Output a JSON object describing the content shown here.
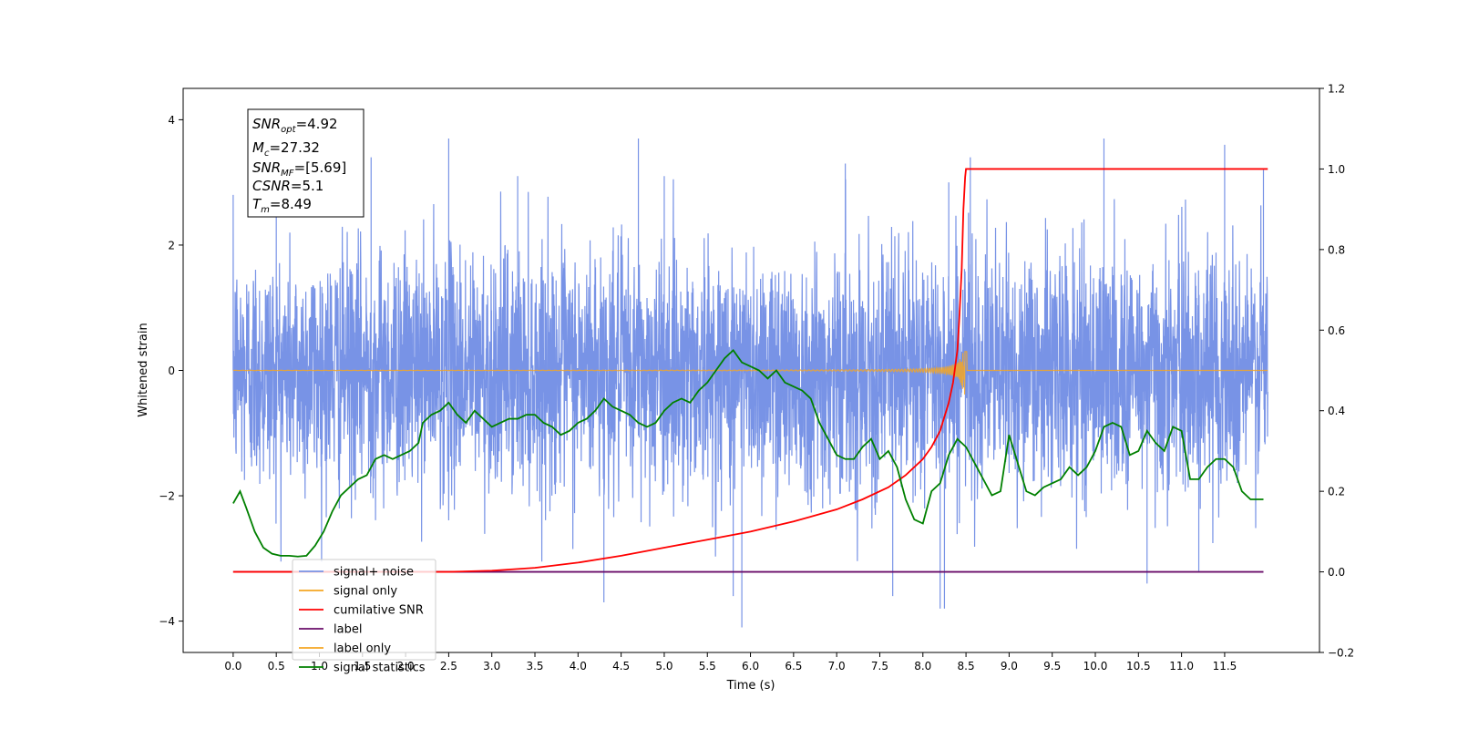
{
  "chart_data": {
    "type": "line",
    "xlabel": "Time (s)",
    "ylabel": "Whitened strain",
    "xlim": [
      -0.58,
      12.6
    ],
    "ylim_left": [
      -4.5,
      4.5
    ],
    "ylim_right": [
      -0.2,
      1.2
    ],
    "x_ticks": [
      "0.0",
      "0.5",
      "1.0",
      "1.5",
      "2.0",
      "2.5",
      "3.0",
      "3.5",
      "4.0",
      "4.5",
      "5.0",
      "5.5",
      "6.0",
      "6.5",
      "7.0",
      "7.5",
      "8.0",
      "8.5",
      "9.0",
      "9.5",
      "10.0",
      "10.5",
      "11.0",
      "11.5"
    ],
    "y_ticks_left": [
      "4",
      "2",
      "0",
      "−2",
      "−4"
    ],
    "y_ticks_right": [
      "1.2",
      "1.0",
      "0.8",
      "0.6",
      "0.4",
      "0.2",
      "0.0",
      "−0.2"
    ],
    "grid": false,
    "legend_placement": "lower-left",
    "annotation": {
      "snr_opt": "=4.92",
      "mc": "=27.32",
      "snr_mf": "=[5.69]",
      "csnr": "=5.1",
      "tm": "=8.49"
    },
    "series": [
      {
        "name": "signal+ noise",
        "color": "#7893e6",
        "axis": "left",
        "x_range": [
          0,
          12.0
        ],
        "amplitude_std": 0.95,
        "peaks": [
          [
            0.0,
            2.8
          ],
          [
            0.5,
            3.2
          ],
          [
            1.6,
            3.4
          ],
          [
            2.5,
            3.7
          ],
          [
            3.3,
            3.1
          ],
          [
            4.7,
            3.7
          ],
          [
            5.0,
            3.1
          ],
          [
            7.1,
            3.3
          ],
          [
            8.3,
            3.0
          ],
          [
            8.55,
            3.4
          ],
          [
            10.1,
            3.7
          ],
          [
            11.5,
            3.6
          ],
          [
            11.95,
            3.2
          ],
          [
            5.9,
            -4.1
          ],
          [
            4.3,
            -3.7
          ],
          [
            7.65,
            -3.6
          ],
          [
            8.2,
            -3.8
          ],
          [
            8.25,
            -3.8
          ],
          [
            10.6,
            -3.4
          ],
          [
            11.2,
            -3.2
          ],
          [
            5.8,
            -3.6
          ]
        ]
      },
      {
        "name": "signal only",
        "color": "#f5a623",
        "axis": "left",
        "x_range": [
          0,
          12.0
        ],
        "merger_time": 8.49,
        "peak_amplitude": 0.75
      },
      {
        "name": "cumilative SNR",
        "color": "#ff0000",
        "axis": "right",
        "x": [
          0,
          2.5,
          3.0,
          3.5,
          4.0,
          4.5,
          5.0,
          5.5,
          6.0,
          6.5,
          7.0,
          7.3,
          7.6,
          7.8,
          8.0,
          8.1,
          8.2,
          8.3,
          8.35,
          8.4,
          8.42,
          8.45,
          8.47,
          8.49,
          8.5,
          12.0
        ],
        "y": [
          0,
          0,
          0.003,
          0.01,
          0.023,
          0.04,
          0.06,
          0.08,
          0.1,
          0.125,
          0.155,
          0.18,
          0.21,
          0.24,
          0.28,
          0.31,
          0.35,
          0.42,
          0.47,
          0.55,
          0.62,
          0.75,
          0.9,
          0.98,
          1.0,
          1.0
        ]
      },
      {
        "name": "label",
        "color": "#6a0d6a",
        "axis": "right",
        "x": [
          0,
          11.95
        ],
        "y": [
          0,
          0
        ]
      },
      {
        "name": "label only",
        "color": "#f5a623",
        "axis": "right",
        "x": [],
        "y": []
      },
      {
        "name": "signal statistics",
        "color": "#008000",
        "axis": "right",
        "x": [
          0,
          0.08,
          0.15,
          0.25,
          0.35,
          0.45,
          0.55,
          0.65,
          0.75,
          0.85,
          0.95,
          1.05,
          1.15,
          1.25,
          1.35,
          1.45,
          1.55,
          1.65,
          1.75,
          1.85,
          1.95,
          2.05,
          2.15,
          2.2,
          2.3,
          2.4,
          2.5,
          2.6,
          2.7,
          2.8,
          2.9,
          3.0,
          3.1,
          3.2,
          3.3,
          3.4,
          3.5,
          3.6,
          3.7,
          3.8,
          3.9,
          4.0,
          4.1,
          4.2,
          4.3,
          4.4,
          4.5,
          4.6,
          4.7,
          4.8,
          4.9,
          5.0,
          5.1,
          5.2,
          5.3,
          5.4,
          5.5,
          5.6,
          5.7,
          5.8,
          5.9,
          6.0,
          6.1,
          6.2,
          6.3,
          6.4,
          6.5,
          6.6,
          6.7,
          6.8,
          6.9,
          7.0,
          7.1,
          7.2,
          7.3,
          7.4,
          7.5,
          7.6,
          7.7,
          7.8,
          7.9,
          8.0,
          8.1,
          8.2,
          8.3,
          8.4,
          8.5,
          8.6,
          8.7,
          8.8,
          8.9,
          9.0,
          9.1,
          9.2,
          9.3,
          9.4,
          9.5,
          9.6,
          9.7,
          9.8,
          9.9,
          10.0,
          10.1,
          10.2,
          10.3,
          10.4,
          10.5,
          10.6,
          10.7,
          10.8,
          10.9,
          11.0,
          11.1,
          11.2,
          11.3,
          11.4,
          11.5,
          11.6,
          11.7,
          11.8,
          11.9,
          11.95
        ],
        "y": [
          0.17,
          0.2,
          0.16,
          0.1,
          0.06,
          0.045,
          0.04,
          0.04,
          0.038,
          0.04,
          0.065,
          0.1,
          0.15,
          0.19,
          0.21,
          0.23,
          0.24,
          0.28,
          0.29,
          0.28,
          0.29,
          0.3,
          0.32,
          0.37,
          0.39,
          0.4,
          0.42,
          0.39,
          0.37,
          0.4,
          0.38,
          0.36,
          0.37,
          0.38,
          0.38,
          0.39,
          0.39,
          0.37,
          0.36,
          0.34,
          0.35,
          0.37,
          0.38,
          0.4,
          0.43,
          0.41,
          0.4,
          0.39,
          0.37,
          0.36,
          0.37,
          0.4,
          0.42,
          0.43,
          0.42,
          0.45,
          0.47,
          0.5,
          0.53,
          0.55,
          0.52,
          0.51,
          0.5,
          0.48,
          0.5,
          0.47,
          0.46,
          0.45,
          0.43,
          0.37,
          0.33,
          0.29,
          0.28,
          0.28,
          0.31,
          0.33,
          0.28,
          0.3,
          0.26,
          0.18,
          0.13,
          0.12,
          0.2,
          0.22,
          0.29,
          0.33,
          0.31,
          0.27,
          0.23,
          0.19,
          0.2,
          0.34,
          0.27,
          0.2,
          0.19,
          0.21,
          0.22,
          0.23,
          0.26,
          0.24,
          0.26,
          0.3,
          0.36,
          0.37,
          0.36,
          0.29,
          0.3,
          0.35,
          0.32,
          0.3,
          0.36,
          0.35,
          0.23,
          0.23,
          0.26,
          0.28,
          0.28,
          0.26,
          0.2,
          0.18,
          0.18,
          0.18
        ]
      }
    ]
  }
}
